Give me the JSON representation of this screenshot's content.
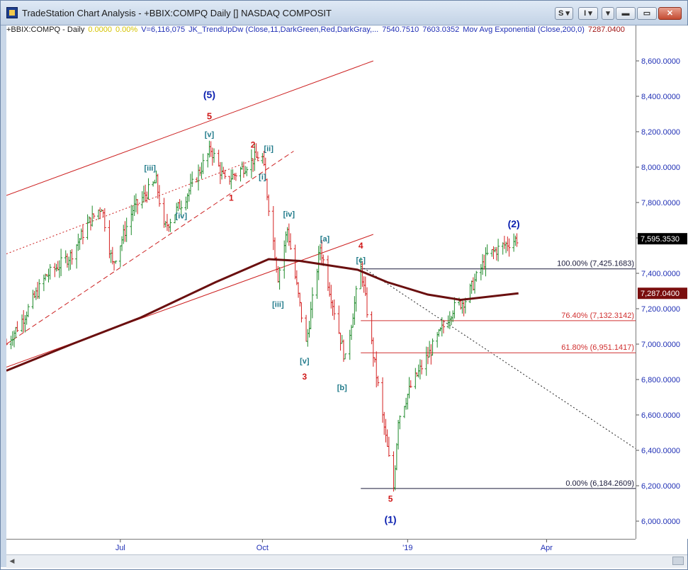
{
  "window": {
    "title": "TradeStation Chart Analysis - +BBIX:COMPQ Daily [] NASDAQ COMPOSIT",
    "buttons": {
      "s_label": "S",
      "i_label": "I"
    }
  },
  "infobar": {
    "symbol": "+BBIX:COMPQ - Daily",
    "change": "0.0000",
    "change_pct": "0.00%",
    "volume": "V=6,116,075",
    "indicator": "JK_TrendUpDw (Close,11,DarkGreen,Red,DarkGray,...",
    "ind_value1": "7540.7510",
    "ind_value2": "7603.0352",
    "mavg": "Mov Avg Exponential (Close,200,0)",
    "mavg_value": "7287.0400"
  },
  "colors": {
    "up_bar": "#1e8a2a",
    "down_bar": "#d42020",
    "moving_average": "#6a0f0f",
    "channel": "#cc2020",
    "fib_line": "#d03030",
    "fib_line_dark": "#1a1a3a",
    "label_blue": "#0a1fb0",
    "label_red": "#d01818",
    "label_teal": "#207a8a",
    "axis_text": "#1f2fb5",
    "price_box": "#7a0e0e"
  },
  "chart_data": {
    "type": "ohlc-bar",
    "title": "+BBIX:COMPQ Daily NASDAQ COMPOSIT",
    "xlabel": "",
    "ylabel": "",
    "ylim": [
      5900,
      8800
    ],
    "y_ticks": [
      "6,000.0000",
      "6,200.0000",
      "6,400.0000",
      "6,600.0000",
      "6,800.0000",
      "7,000.0000",
      "7,200.0000",
      "7,400.0000",
      "7,600.0000",
      "7,800.0000",
      "8,000.0000",
      "8,200.0000",
      "8,400.0000",
      "8,600.0000"
    ],
    "y_tick_values": [
      6000,
      6200,
      6400,
      6600,
      6800,
      7000,
      7200,
      7400,
      7600,
      7800,
      8000,
      8200,
      8400,
      8600
    ],
    "x_ticks": [
      {
        "label": "Jul",
        "date": "2018-07-02"
      },
      {
        "label": "Oct",
        "date": "2018-10-01"
      },
      {
        "label": "'19",
        "date": "2019-01-02"
      },
      {
        "label": "Apr",
        "date": "2019-04-01"
      }
    ],
    "x_range": [
      "2018-04-20",
      "2019-05-28"
    ],
    "last_price": "7,595.3530",
    "ma_price": "7,287.0400",
    "price_path": [
      {
        "date": "2018-04-20",
        "price": 7000
      },
      {
        "date": "2018-05-01",
        "price": 7150
      },
      {
        "date": "2018-05-15",
        "price": 7380
      },
      {
        "date": "2018-05-31",
        "price": 7500
      },
      {
        "date": "2018-06-12",
        "price": 7690
      },
      {
        "date": "2018-06-20",
        "price": 7780
      },
      {
        "date": "2018-06-27",
        "price": 7450
      },
      {
        "date": "2018-07-10",
        "price": 7760
      },
      {
        "date": "2018-07-25",
        "price": 7920
      },
      {
        "date": "2018-07-30",
        "price": 7650
      },
      {
        "date": "2018-08-14",
        "price": 7850
      },
      {
        "date": "2018-08-29",
        "price": 8100
      },
      {
        "date": "2018-09-07",
        "price": 7920
      },
      {
        "date": "2018-09-12",
        "price": 7950
      },
      {
        "date": "2018-09-26",
        "price": 8050
      },
      {
        "date": "2018-10-01",
        "price": 8050
      },
      {
        "date": "2018-10-11",
        "price": 7380
      },
      {
        "date": "2018-10-17",
        "price": 7650
      },
      {
        "date": "2018-10-29",
        "price": 7000
      },
      {
        "date": "2018-11-07",
        "price": 7550
      },
      {
        "date": "2018-11-23",
        "price": 6910
      },
      {
        "date": "2018-12-03",
        "price": 7440
      },
      {
        "date": "2018-12-10",
        "price": 7000
      },
      {
        "date": "2018-12-21",
        "price": 6350
      },
      {
        "date": "2018-12-24",
        "price": 6190
      },
      {
        "date": "2018-12-27",
        "price": 6580
      },
      {
        "date": "2019-01-04",
        "price": 6760
      },
      {
        "date": "2019-01-16",
        "price": 6950
      },
      {
        "date": "2019-01-31",
        "price": 7200
      },
      {
        "date": "2019-02-08",
        "price": 7250
      },
      {
        "date": "2019-02-22",
        "price": 7500
      },
      {
        "date": "2019-03-05",
        "price": 7560
      },
      {
        "date": "2019-03-13",
        "price": 7595
      }
    ],
    "moving_average_path": [
      {
        "date": "2018-04-20",
        "price": 6850
      },
      {
        "date": "2018-06-01",
        "price": 7000
      },
      {
        "date": "2018-07-15",
        "price": 7150
      },
      {
        "date": "2018-09-01",
        "price": 7350
      },
      {
        "date": "2018-10-05",
        "price": 7480
      },
      {
        "date": "2018-10-25",
        "price": 7470
      },
      {
        "date": "2018-12-01",
        "price": 7420
      },
      {
        "date": "2018-12-20",
        "price": 7350
      },
      {
        "date": "2019-01-15",
        "price": 7280
      },
      {
        "date": "2019-02-05",
        "price": 7250
      },
      {
        "date": "2019-03-14",
        "price": 7287
      }
    ],
    "fibonacci_levels": [
      {
        "label": "100.00% (7,425.1683)",
        "price": 7425.1683,
        "from": "2018-12-03",
        "dark": true
      },
      {
        "label": "76.40% (7,132.3142)",
        "price": 7132.3142,
        "from": "2018-12-03",
        "dark": false
      },
      {
        "label": "61.80% (6,951.1417)",
        "price": 6951.1417,
        "from": "2018-12-03",
        "dark": false
      },
      {
        "label": "0.00% (6,184.2609)",
        "price": 6184.2609,
        "from": "2018-12-03",
        "dark": true
      }
    ],
    "trendlines": [
      {
        "style": "solid",
        "color": "channel",
        "from": {
          "date": "2018-04-20",
          "price": 7840
        },
        "to": {
          "date": "2018-12-11",
          "price": 8600
        }
      },
      {
        "style": "solid",
        "color": "channel",
        "from": {
          "date": "2018-04-20",
          "price": 6870
        },
        "to": {
          "date": "2018-12-11",
          "price": 7620
        }
      },
      {
        "style": "dashed",
        "color": "channel",
        "from": {
          "date": "2018-04-20",
          "price": 7000
        },
        "to": {
          "date": "2018-10-21",
          "price": 8090
        }
      },
      {
        "style": "dotted",
        "color": "channel",
        "from": {
          "date": "2018-04-20",
          "price": 7510
        },
        "to": {
          "date": "2018-10-01",
          "price": 8060
        }
      },
      {
        "style": "dotted",
        "color": "dark",
        "from": {
          "date": "2018-12-03",
          "price": 7440
        },
        "to": {
          "date": "2019-05-28",
          "price": 6410
        }
      }
    ],
    "wave_labels": [
      {
        "text": "(5)",
        "color": "blue",
        "size": 14,
        "date": "2018-08-28",
        "price": 8390
      },
      {
        "text": "5",
        "color": "red",
        "size": 13,
        "date": "2018-08-28",
        "price": 8270
      },
      {
        "text": "[v]",
        "color": "teal",
        "size": 11,
        "date": "2018-08-28",
        "price": 8170
      },
      {
        "text": "[iii]",
        "color": "teal",
        "size": 11,
        "date": "2018-07-21",
        "price": 7980
      },
      {
        "text": "[iv]",
        "color": "teal",
        "size": 11,
        "date": "2018-08-10",
        "price": 7710
      },
      {
        "text": "1",
        "color": "red",
        "size": 12,
        "date": "2018-09-11",
        "price": 7810
      },
      {
        "text": "2",
        "color": "red",
        "size": 12,
        "date": "2018-09-25",
        "price": 8110
      },
      {
        "text": "[ii]",
        "color": "teal",
        "size": 11,
        "date": "2018-10-05",
        "price": 8090
      },
      {
        "text": "[i]",
        "color": "teal",
        "size": 11,
        "date": "2018-10-01",
        "price": 7930
      },
      {
        "text": "[iv]",
        "color": "teal",
        "size": 11,
        "date": "2018-10-18",
        "price": 7720
      },
      {
        "text": "[iii]",
        "color": "teal",
        "size": 11,
        "date": "2018-10-11",
        "price": 7210
      },
      {
        "text": "[v]",
        "color": "teal",
        "size": 11,
        "date": "2018-10-28",
        "price": 6890
      },
      {
        "text": "3",
        "color": "red",
        "size": 12,
        "date": "2018-10-28",
        "price": 6800
      },
      {
        "text": "[a]",
        "color": "teal",
        "size": 11,
        "date": "2018-11-10",
        "price": 7580
      },
      {
        "text": "4",
        "color": "red",
        "size": 12,
        "date": "2018-12-03",
        "price": 7540
      },
      {
        "text": "[c]",
        "color": "teal",
        "size": 11,
        "date": "2018-12-03",
        "price": 7460
      },
      {
        "text": "[b]",
        "color": "teal",
        "size": 11,
        "date": "2018-11-21",
        "price": 6740
      },
      {
        "text": "5",
        "color": "red",
        "size": 12,
        "date": "2018-12-22",
        "price": 6110
      },
      {
        "text": "(1)",
        "color": "blue",
        "size": 14,
        "date": "2018-12-22",
        "price": 5990
      },
      {
        "text": "(2)",
        "color": "blue",
        "size": 14,
        "date": "2019-03-11",
        "price": 7660
      }
    ]
  }
}
